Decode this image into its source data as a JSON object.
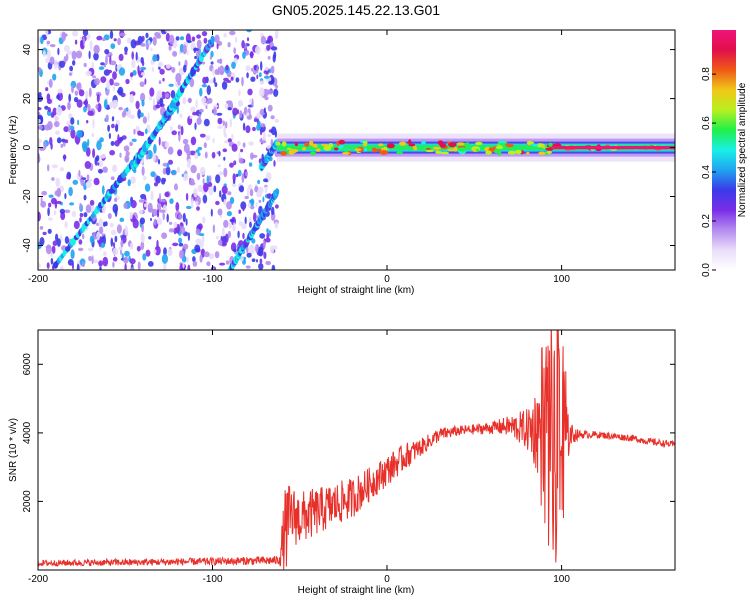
{
  "figure": {
    "title": "GN05.2025.145.22.13.G01"
  },
  "colors": {
    "axis": "#000000",
    "snr_line": "#e8302a",
    "colormap": [
      "#ffffff",
      "#e9ddfa",
      "#b48cf0",
      "#7a2ee8",
      "#3a3ae8",
      "#1fa4f0",
      "#19f0e6",
      "#21f04a",
      "#b8f020",
      "#f0c818",
      "#f05a18",
      "#e0104a",
      "#f0147a"
    ]
  },
  "chart_data": [
    {
      "type": "heatmap",
      "name": "spectrogram",
      "xlabel": "Height of straight line (km)",
      "ylabel": "Frequency (Hz)",
      "xlim": [
        -200,
        165
      ],
      "ylim": [
        -50,
        48
      ],
      "xticks": [
        -200,
        -100,
        0,
        100
      ],
      "yticks": [
        -40,
        -20,
        0,
        20,
        40
      ],
      "noise_region_x": [
        -200,
        -63
      ],
      "tone_segment": {
        "x": [
          -63,
          165
        ],
        "frequency": 0,
        "max_amplitude": 1.0
      },
      "linear_tracks": [
        {
          "x": [
            -190,
            -120
          ],
          "y": [
            -48,
            18
          ]
        },
        {
          "x": [
            -145,
            -100
          ],
          "y": [
            -8,
            44
          ]
        },
        {
          "x": [
            -90,
            -63
          ],
          "y": [
            -50,
            -18
          ]
        },
        {
          "x": [
            -72,
            -63
          ],
          "y": [
            -8,
            2
          ]
        }
      ],
      "colorbar": {
        "label": "Normalized spectral amplitude",
        "range": [
          0.0,
          0.98
        ],
        "ticks": [
          0.0,
          0.2,
          0.4,
          0.6,
          0.8
        ],
        "tick_labels": [
          "0.0",
          "0.2",
          "0.4",
          "0.6",
          "0.8"
        ]
      }
    },
    {
      "type": "line",
      "name": "snr",
      "xlabel": "Height of straight line (km)",
      "ylabel": "SNR (10 * v/v)",
      "xlim": [
        -200,
        165
      ],
      "ylim": [
        0,
        7000
      ],
      "xticks": [
        -200,
        -100,
        0,
        100
      ],
      "yticks": [
        2000,
        4000,
        6000
      ],
      "series": [
        {
          "x": [
            -200,
            -150,
            -100,
            -62,
            -58,
            -55,
            -50,
            -40,
            -30,
            -20,
            -10,
            0,
            10,
            20,
            30,
            40,
            50,
            60,
            70,
            80,
            90,
            95,
            100,
            105,
            110,
            120,
            130,
            140,
            150,
            165
          ],
          "values": [
            200,
            220,
            250,
            280,
            1200,
            1600,
            1500,
            1700,
            1900,
            2100,
            2500,
            2900,
            3300,
            3600,
            3950,
            4050,
            4100,
            4150,
            4200,
            4100,
            4150,
            4000,
            4100,
            3950,
            3950,
            3950,
            3900,
            3850,
            3750,
            3650
          ]
        }
      ],
      "envelope": {
        "x": [
          -200,
          -150,
          -100,
          -62,
          -58,
          -55,
          -50,
          -40,
          -30,
          -20,
          -10,
          0,
          10,
          20,
          30,
          40,
          50,
          60,
          70,
          80,
          90,
          95,
          100,
          105,
          110,
          120,
          130,
          140,
          150,
          165
        ],
        "amplitude": [
          90,
          100,
          110,
          130,
          1400,
          900,
          800,
          700,
          650,
          600,
          500,
          450,
          400,
          250,
          200,
          150,
          150,
          180,
          300,
          600,
          1800,
          2700,
          2300,
          350,
          120,
          100,
          100,
          100,
          100,
          100
        ]
      }
    }
  ]
}
